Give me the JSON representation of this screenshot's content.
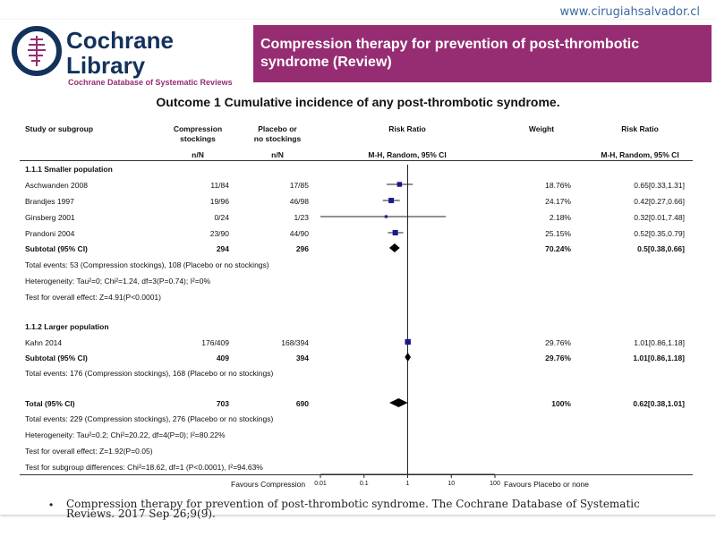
{
  "watermark": "www.cirugiahsalvador.cl",
  "logo": {
    "line1": "Cochrane",
    "line2": "Library",
    "subtitle": "Cochrane Database of Systematic Reviews",
    "color": "#13325b",
    "accent": "#962d72"
  },
  "banner": {
    "text": "Compression therapy for prevention of post-thrombotic syndrome (Review)",
    "color": "#962d72"
  },
  "outcome_title": "Outcome 1 Cumulative incidence of any post-thrombotic syndrome.",
  "headers": {
    "study": "Study or subgroup",
    "comp_l1": "Compression",
    "comp_l2": "stockings",
    "plac_l1": "Placebo or",
    "plac_l2": "no stockings",
    "rr": "Risk Ratio",
    "weight": "Weight",
    "rr2": "Risk Ratio",
    "nN1": "n/N",
    "nN2": "n/N",
    "mh": "M-H, Random, 95% CI",
    "mh2": "M-H, Random, 95% CI"
  },
  "groups": [
    {
      "title": "1.1.1 Smaller population",
      "studies": [
        {
          "name": "Aschwanden 2008",
          "comp": "11/84",
          "plac": "17/85",
          "weight": "18.76%",
          "ci": "0.65[0.33,1.31]",
          "rr": 0.65,
          "lo": 0.33,
          "hi": 1.31,
          "w": 18.76
        },
        {
          "name": "Brandjes 1997",
          "comp": "19/96",
          "plac": "46/98",
          "weight": "24.17%",
          "ci": "0.42[0.27,0.66]",
          "rr": 0.42,
          "lo": 0.27,
          "hi": 0.66,
          "w": 24.17
        },
        {
          "name": "Ginsberg 2001",
          "comp": "0/24",
          "plac": "1/23",
          "weight": "2.18%",
          "ci": "0.32[0.01,7.48]",
          "rr": 0.32,
          "lo": 0.01,
          "hi": 7.48,
          "w": 2.18
        },
        {
          "name": "Prandoni 2004",
          "comp": "23/90",
          "plac": "44/90",
          "weight": "25.15%",
          "ci": "0.52[0.35,0.79]",
          "rr": 0.52,
          "lo": 0.35,
          "hi": 0.79,
          "w": 25.15
        }
      ],
      "subtotal": {
        "label": "Subtotal (95% CI)",
        "comp": "294",
        "plac": "296",
        "weight": "70.24%",
        "ci": "0.5[0.38,0.66]",
        "rr": 0.5,
        "lo": 0.38,
        "hi": 0.66
      },
      "notes": [
        "Total events: 53 (Compression stockings), 108 (Placebo or no stockings)",
        "Heterogeneity: Tau²=0; Chi²=1.24, df=3(P=0.74); I²=0%",
        "Test for overall effect: Z=4.91(P<0.0001)"
      ]
    },
    {
      "title": "1.1.2 Larger population",
      "studies": [
        {
          "name": "Kahn 2014",
          "comp": "176/409",
          "plac": "168/394",
          "weight": "29.76%",
          "ci": "1.01[0.86,1.18]",
          "rr": 1.01,
          "lo": 0.86,
          "hi": 1.18,
          "w": 29.76
        }
      ],
      "subtotal": {
        "label": "Subtotal (95% CI)",
        "comp": "409",
        "plac": "394",
        "weight": "29.76%",
        "ci": "1.01[0.86,1.18]",
        "rr": 1.01,
        "lo": 0.86,
        "hi": 1.18
      },
      "notes": [
        "Total events: 176 (Compression stockings), 168 (Placebo or no stockings)"
      ]
    }
  ],
  "total": {
    "label": "Total (95% CI)",
    "comp": "703",
    "plac": "690",
    "weight": "100%",
    "ci": "0.62[0.38,1.01]",
    "rr": 0.62,
    "lo": 0.38,
    "hi": 1.01
  },
  "total_notes": [
    "Total events: 229 (Compression stockings), 276 (Placebo or no stockings)",
    "Heterogeneity: Tau²=0.2; Chi²=20.22, df=4(P=0); I²=80.22%",
    "Test for overall effect: Z=1.92(P=0.05)",
    "Test for subgroup differences: Chi²=18.62, df=1 (P<0.0001), I²=94.63%"
  ],
  "axis": {
    "left_label": "Favours Compression",
    "right_label": "Favours Placebo or none",
    "ticks": [
      "0.01",
      "0.1",
      "1",
      "10",
      "100"
    ],
    "tick_values": [
      0.01,
      0.1,
      1,
      10,
      100
    ]
  },
  "marker_color": "#1a1a8c",
  "footnote": "Compression therapy for prevention of post-thrombotic syndrome. The Cochrane Database of Systematic Reviews. 2017 Sep 26;9(9)."
}
